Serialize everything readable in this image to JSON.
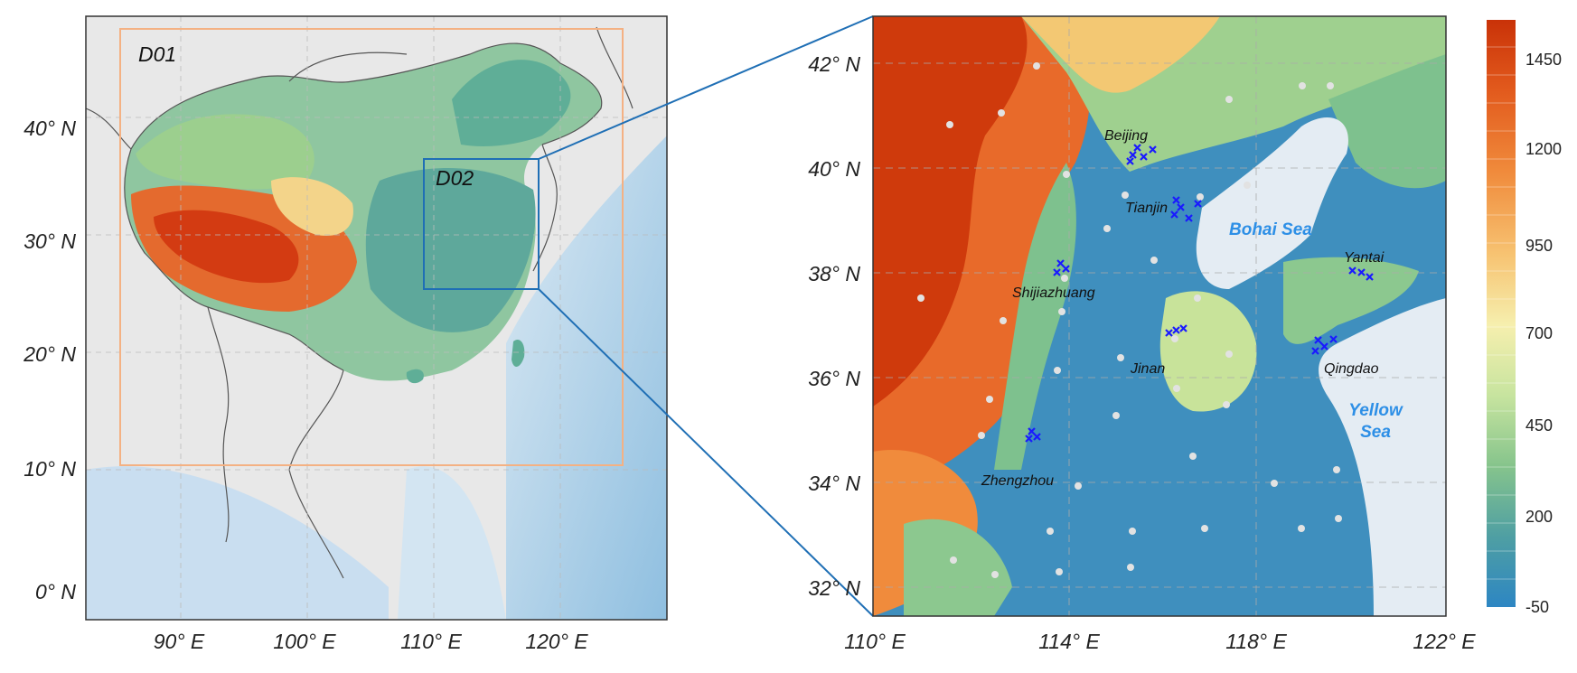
{
  "left_map": {
    "domain_outer": "D01",
    "domain_inner": "D02",
    "lat_labels": [
      "40° N",
      "30° N",
      "20° N",
      "10° N",
      "0° N"
    ],
    "lon_labels": [
      "90° E",
      "100° E",
      "110° E",
      "120° E"
    ],
    "colors": {
      "domain_outer_box": "#f4b183",
      "domain_inner_box": "#1f6fb5"
    }
  },
  "right_map": {
    "lat_labels": [
      "42° N",
      "40° N",
      "38° N",
      "36° N",
      "34° N",
      "32° N"
    ],
    "lon_labels": [
      "110° E",
      "114° E",
      "118° E",
      "122° E"
    ],
    "cities": [
      {
        "name": "Beijing",
        "id": "beijing"
      },
      {
        "name": "Tianjin",
        "id": "tianjin"
      },
      {
        "name": "Shijiazhuang",
        "id": "shijiazhuang"
      },
      {
        "name": "Jinan",
        "id": "jinan"
      },
      {
        "name": "Qingdao",
        "id": "qingdao"
      },
      {
        "name": "Yantai",
        "id": "yantai"
      },
      {
        "name": "Zhengzhou",
        "id": "zhengzhou"
      }
    ],
    "seas": [
      "Bohai Sea",
      "Yellow",
      "Sea"
    ],
    "marker_colors": {
      "site_x": "#1a1aff",
      "station_dot": "#e0e0e0"
    }
  },
  "colorbar": {
    "ticks": [
      "1450",
      "1200",
      "950",
      "700",
      "450",
      "200",
      "-50"
    ],
    "colors": [
      "#cc3a0c",
      "#e45c1c",
      "#ef8a3a",
      "#f5b865",
      "#f7dd97",
      "#f3f3b6",
      "#cfe8a4",
      "#98d08e",
      "#6dbd94",
      "#4ea2a8",
      "#3f8fbe",
      "#2e86c1"
    ]
  }
}
